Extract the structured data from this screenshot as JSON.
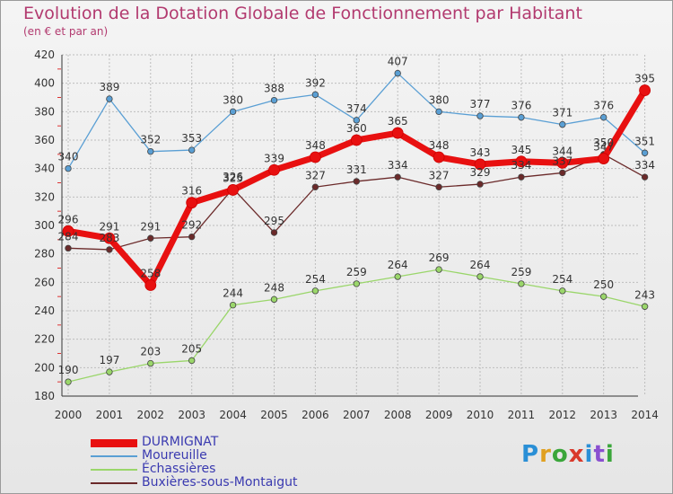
{
  "header": {
    "title": "Evolution de la Dotation Globale de Fonctionnement par Habitant",
    "subtitle": "(en € et par an)"
  },
  "logo": {
    "text": "Proxiti"
  },
  "chart_data": {
    "type": "line",
    "title": "Evolution de la Dotation Globale de Fonctionnement par Habitant",
    "subtitle": "(en € et par an)",
    "xlabel": "",
    "ylabel": "",
    "x": [
      "2000",
      "2001",
      "2002",
      "2003",
      "2004",
      "2005",
      "2006",
      "2007",
      "2008",
      "2009",
      "2010",
      "2011",
      "2012",
      "2013",
      "2014"
    ],
    "ylim": [
      180,
      420
    ],
    "yticks": [
      180,
      200,
      220,
      240,
      260,
      280,
      300,
      320,
      340,
      360,
      380,
      400,
      420
    ],
    "grid": true,
    "legend_position": "bottom-left",
    "series": [
      {
        "name": "DURMIGNAT",
        "color": "#e81010",
        "width": 7,
        "values": [
          296,
          291,
          258,
          316,
          325,
          339,
          348,
          360,
          365,
          348,
          343,
          345,
          344,
          347,
          395
        ]
      },
      {
        "name": "Moureuille",
        "color": "#5a9fd4",
        "width": 1.3,
        "values": [
          340,
          389,
          352,
          353,
          380,
          388,
          392,
          374,
          407,
          380,
          377,
          376,
          371,
          376,
          351
        ]
      },
      {
        "name": "Échassières",
        "color": "#9ad66a",
        "width": 1.3,
        "values": [
          190,
          197,
          203,
          205,
          244,
          248,
          254,
          259,
          264,
          269,
          264,
          259,
          254,
          250,
          243
        ]
      },
      {
        "name": "Buxières-sous-Montaigut",
        "color": "#6b2a2a",
        "width": 1.3,
        "values": [
          284,
          283,
          291,
          292,
          326,
          295,
          327,
          331,
          334,
          327,
          329,
          334,
          337,
          350,
          334
        ]
      }
    ]
  }
}
